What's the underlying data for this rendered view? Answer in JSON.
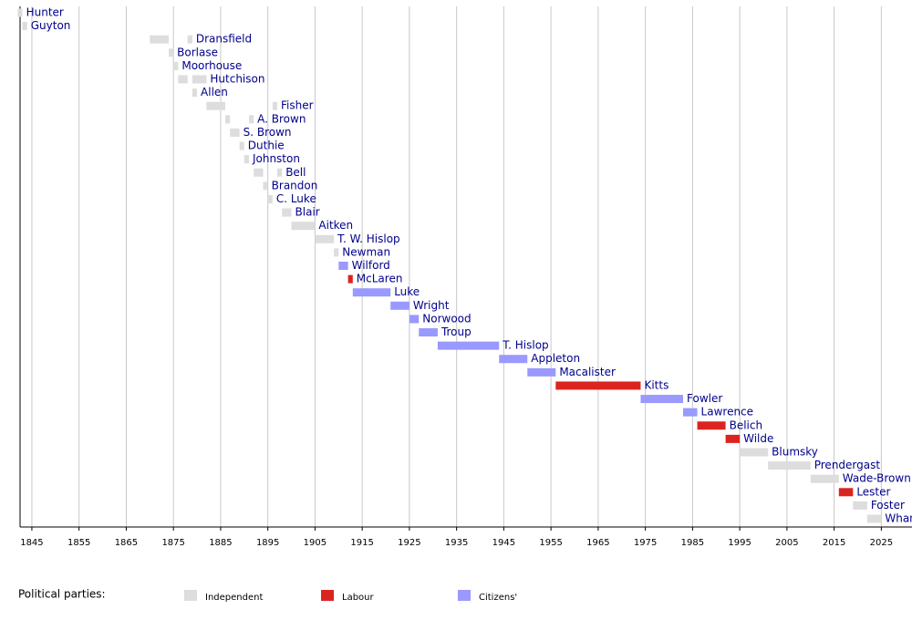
{
  "chart_data": {
    "type": "timeline",
    "xlim": [
      1842.5,
      2031.5
    ],
    "xticks": [
      1845,
      1855,
      1865,
      1875,
      1885,
      1895,
      1905,
      1915,
      1925,
      1935,
      1945,
      1955,
      1965,
      1975,
      1985,
      1995,
      2005,
      2015,
      2025
    ],
    "grid": true,
    "legend_title": "Political parties:",
    "parties": [
      {
        "name": "Independent",
        "color": "#dddddd"
      },
      {
        "name": "Labour",
        "color": "#dc241f"
      },
      {
        "name": "Citizens'",
        "color": "#9999ff"
      }
    ],
    "rows": [
      {
        "name": "Hunter",
        "party": "Independent",
        "terms": [
          [
            1842,
            1843
          ]
        ]
      },
      {
        "name": "Guyton",
        "party": "Independent",
        "terms": [
          [
            1843,
            1844
          ]
        ]
      },
      {
        "name": "Dransfield",
        "party": "Independent",
        "terms": [
          [
            1870,
            1874
          ],
          [
            1878,
            1879
          ]
        ]
      },
      {
        "name": "Borlase",
        "party": "Independent",
        "terms": [
          [
            1874,
            1875
          ]
        ]
      },
      {
        "name": "Moorhouse",
        "party": "Independent",
        "terms": [
          [
            1875,
            1876
          ]
        ]
      },
      {
        "name": "Hutchison",
        "party": "Independent",
        "terms": [
          [
            1876,
            1878
          ],
          [
            1879,
            1882
          ]
        ]
      },
      {
        "name": "Allen",
        "party": "Independent",
        "terms": [
          [
            1879,
            1880
          ]
        ]
      },
      {
        "name": "Fisher",
        "party": "Independent",
        "terms": [
          [
            1882,
            1886
          ],
          [
            1896,
            1897
          ]
        ]
      },
      {
        "name": "A. Brown",
        "party": "Independent",
        "terms": [
          [
            1886,
            1887
          ],
          [
            1891,
            1892
          ]
        ]
      },
      {
        "name": "S. Brown",
        "party": "Independent",
        "terms": [
          [
            1887,
            1889
          ]
        ]
      },
      {
        "name": "Duthie",
        "party": "Independent",
        "terms": [
          [
            1889,
            1890
          ]
        ]
      },
      {
        "name": "Johnston",
        "party": "Independent",
        "terms": [
          [
            1890,
            1891
          ]
        ]
      },
      {
        "name": "Bell",
        "party": "Independent",
        "terms": [
          [
            1892,
            1894
          ],
          [
            1897,
            1898
          ]
        ]
      },
      {
        "name": "Brandon",
        "party": "Independent",
        "terms": [
          [
            1894,
            1895
          ]
        ]
      },
      {
        "name": "C. Luke",
        "party": "Independent",
        "terms": [
          [
            1895,
            1896
          ]
        ]
      },
      {
        "name": "Blair",
        "party": "Independent",
        "terms": [
          [
            1898,
            1900
          ]
        ]
      },
      {
        "name": "Aitken",
        "party": "Independent",
        "terms": [
          [
            1900,
            1905
          ]
        ]
      },
      {
        "name": "T. W. Hislop",
        "party": "Independent",
        "terms": [
          [
            1905,
            1909
          ]
        ]
      },
      {
        "name": "Newman",
        "party": "Independent",
        "terms": [
          [
            1909,
            1910
          ]
        ]
      },
      {
        "name": "Wilford",
        "party": "Citizens'",
        "terms": [
          [
            1910,
            1912
          ]
        ]
      },
      {
        "name": "McLaren",
        "party": "Labour",
        "terms": [
          [
            1912,
            1913
          ]
        ]
      },
      {
        "name": "Luke",
        "party": "Citizens'",
        "terms": [
          [
            1913,
            1921
          ]
        ]
      },
      {
        "name": "Wright",
        "party": "Citizens'",
        "terms": [
          [
            1921,
            1925
          ]
        ]
      },
      {
        "name": "Norwood",
        "party": "Citizens'",
        "terms": [
          [
            1925,
            1927
          ]
        ]
      },
      {
        "name": "Troup",
        "party": "Citizens'",
        "terms": [
          [
            1927,
            1931
          ]
        ]
      },
      {
        "name": "T. Hislop",
        "party": "Citizens'",
        "terms": [
          [
            1931,
            1944
          ]
        ]
      },
      {
        "name": "Appleton",
        "party": "Citizens'",
        "terms": [
          [
            1944,
            1950
          ]
        ]
      },
      {
        "name": "Macalister",
        "party": "Citizens'",
        "terms": [
          [
            1950,
            1956
          ]
        ]
      },
      {
        "name": "Kitts",
        "party": "Labour",
        "terms": [
          [
            1956,
            1974
          ]
        ]
      },
      {
        "name": "Fowler",
        "party": "Citizens'",
        "terms": [
          [
            1974,
            1983
          ]
        ]
      },
      {
        "name": "Lawrence",
        "party": "Citizens'",
        "terms": [
          [
            1983,
            1986
          ]
        ]
      },
      {
        "name": "Belich",
        "party": "Labour",
        "terms": [
          [
            1986,
            1992
          ]
        ]
      },
      {
        "name": "Wilde",
        "party": "Labour",
        "terms": [
          [
            1992,
            1995
          ]
        ]
      },
      {
        "name": "Blumsky",
        "party": "Independent",
        "terms": [
          [
            1995,
            2001
          ]
        ]
      },
      {
        "name": "Prendergast",
        "party": "Independent",
        "terms": [
          [
            2001,
            2010
          ]
        ]
      },
      {
        "name": "Wade-Brown",
        "party": "Independent",
        "terms": [
          [
            2010,
            2016
          ]
        ]
      },
      {
        "name": "Lester",
        "party": "Labour",
        "terms": [
          [
            2016,
            2019
          ]
        ]
      },
      {
        "name": "Foster",
        "party": "Independent",
        "terms": [
          [
            2019,
            2022
          ]
        ]
      },
      {
        "name": "Whanau",
        "party": "Independent",
        "terms": [
          [
            2022,
            2025
          ]
        ]
      }
    ]
  }
}
